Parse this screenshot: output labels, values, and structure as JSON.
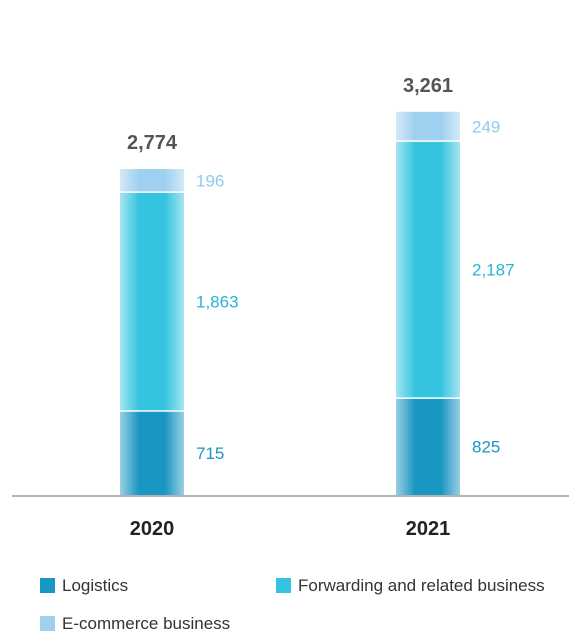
{
  "chart_data": {
    "type": "bar",
    "stacked": true,
    "categories": [
      "2020",
      "2021"
    ],
    "totals": [
      "2,774",
      "3,261"
    ],
    "series": [
      {
        "name": "Logistics",
        "values": [
          715,
          825
        ],
        "labels": [
          "715",
          "825"
        ],
        "color": "#1a96c2",
        "label_color": "#1a96c2"
      },
      {
        "name": "Forwarding and related business",
        "values": [
          1863,
          2187
        ],
        "labels": [
          "1,863",
          "2,187"
        ],
        "color": "#35c4e0",
        "label_color": "#2ab4d6"
      },
      {
        "name": "E-commerce business",
        "values": [
          196,
          249
        ],
        "labels": [
          "196",
          "249"
        ],
        "color": "#9fd0ef",
        "label_color": "#8ecbee"
      }
    ],
    "legend_position": "bottom",
    "grid": false
  }
}
